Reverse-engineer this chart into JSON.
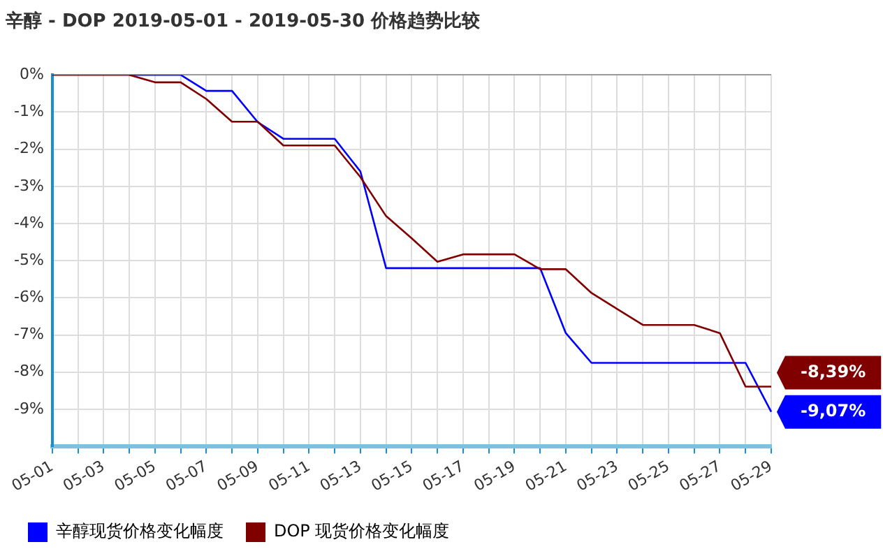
{
  "chart_data": {
    "type": "line",
    "title": "辛醇 - DOP 2019-05-01 - 2019-05-30 价格趋势比较",
    "categories": [
      "05-01",
      null,
      "05-03",
      null,
      "05-05",
      null,
      "05-07",
      null,
      "05-09",
      null,
      "05-11",
      null,
      "05-13",
      null,
      "05-15",
      null,
      "05-17",
      null,
      "05-19",
      null,
      "05-21",
      null,
      "05-23",
      null,
      "05-25",
      null,
      "05-27",
      null,
      "05-29"
    ],
    "series": [
      {
        "name": "辛醇现货价格变化幅度",
        "color": "#0000ff",
        "values": [
          null,
          null,
          null,
          0,
          0,
          0,
          -0.43,
          -0.43,
          -1.27,
          -1.72,
          -1.72,
          -1.72,
          -2.6,
          -5.2,
          -5.2,
          -5.2,
          -5.2,
          -5.2,
          -5.2,
          -5.2,
          -6.95,
          -7.75,
          -7.75,
          -7.75,
          -7.75,
          -7.75,
          -7.75,
          -7.75,
          -9.07
        ],
        "value_labels": [
          null,
          null,
          null,
          null,
          null,
          null,
          null,
          null,
          null,
          null,
          null,
          null,
          null,
          null,
          null,
          null,
          null,
          null,
          null,
          null,
          null,
          null,
          null,
          null,
          null,
          null,
          null,
          null,
          "-9,07%"
        ]
      },
      {
        "name": "DOP 现货价格变化幅度",
        "color": "#800000",
        "values": [
          0,
          0,
          0,
          0,
          -0.2,
          -0.2,
          -0.65,
          -1.26,
          -1.26,
          -1.9,
          -1.9,
          -1.9,
          -2.75,
          -3.8,
          -4.4,
          -5.03,
          -4.83,
          -4.83,
          -4.83,
          -5.23,
          -5.23,
          -5.87,
          -6.3,
          -6.73,
          -6.73,
          -6.73,
          -6.95,
          -8.39,
          -8.39
        ],
        "value_labels": [
          null,
          null,
          null,
          null,
          null,
          null,
          null,
          null,
          null,
          null,
          null,
          null,
          null,
          null,
          null,
          null,
          null,
          null,
          null,
          null,
          null,
          null,
          null,
          null,
          null,
          null,
          null,
          null,
          "-8,39%"
        ]
      }
    ],
    "ylim": [
      -10,
      0
    ],
    "yticks": [
      {
        "value": 0,
        "label": "0%"
      },
      {
        "value": -1,
        "label": "-1%"
      },
      {
        "value": -2,
        "label": "-2%"
      },
      {
        "value": -3,
        "label": "-3%"
      },
      {
        "value": -4,
        "label": "-4%"
      },
      {
        "value": -5,
        "label": "-5%"
      },
      {
        "value": -6,
        "label": "-6%"
      },
      {
        "value": -7,
        "label": "-7%"
      },
      {
        "value": -8,
        "label": "-8%"
      },
      {
        "value": -9,
        "label": "-9%"
      },
      {
        "value": -10,
        "label": null
      }
    ],
    "grid": true,
    "legend": "bottom left",
    "marker": "none",
    "line_style": "solid"
  }
}
